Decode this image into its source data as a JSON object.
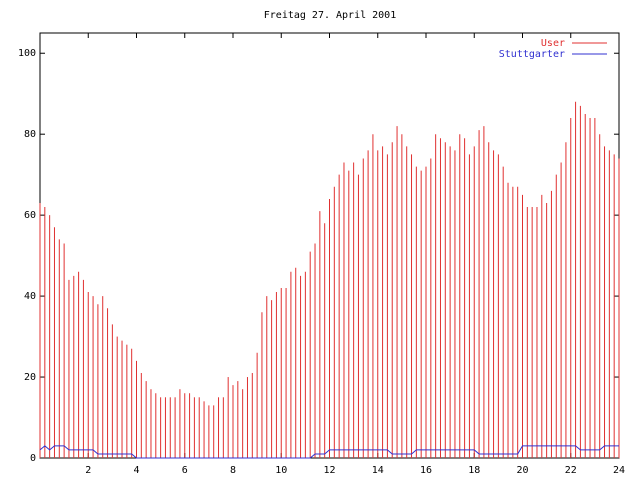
{
  "chart_data": {
    "type": "impulse_line",
    "title": "Freitag 27. April 2001",
    "x": [
      0,
      0.2,
      0.4,
      0.6,
      0.8,
      1,
      1.2,
      1.4,
      1.6,
      1.8,
      2,
      2.2,
      2.4,
      2.6,
      2.8,
      3,
      3.2,
      3.4,
      3.6,
      3.8,
      4,
      4.2,
      4.4,
      4.6,
      4.8,
      5,
      5.2,
      5.4,
      5.6,
      5.8,
      6,
      6.2,
      6.4,
      6.6,
      6.8,
      7,
      7.2,
      7.4,
      7.6,
      7.8,
      8,
      8.2,
      8.4,
      8.6,
      8.8,
      9,
      9.2,
      9.4,
      9.6,
      9.8,
      10,
      10.2,
      10.4,
      10.6,
      10.8,
      11,
      11.2,
      11.4,
      11.6,
      11.8,
      12,
      12.2,
      12.4,
      12.6,
      12.8,
      13,
      13.2,
      13.4,
      13.6,
      13.8,
      14,
      14.2,
      14.4,
      14.6,
      14.8,
      15,
      15.2,
      15.4,
      15.6,
      15.8,
      16,
      16.2,
      16.4,
      16.6,
      16.8,
      17,
      17.2,
      17.4,
      17.6,
      17.8,
      18,
      18.2,
      18.4,
      18.6,
      18.8,
      19,
      19.2,
      19.4,
      19.6,
      19.8,
      20,
      20.2,
      20.4,
      20.6,
      20.8,
      21,
      21.2,
      21.4,
      21.6,
      21.8,
      22,
      22.2,
      22.4,
      22.6,
      22.8,
      23,
      23.2,
      23.4,
      23.6,
      23.8,
      24
    ],
    "series": [
      {
        "name": "User",
        "color": "#e03030",
        "style": "impulses",
        "values": [
          63,
          62,
          60,
          57,
          54,
          53,
          44,
          45,
          46,
          44,
          41,
          40,
          38,
          40,
          37,
          33,
          30,
          29,
          28,
          27,
          24,
          21,
          19,
          17,
          16,
          15,
          15,
          15,
          15,
          17,
          16,
          16,
          15,
          15,
          14,
          13,
          13,
          15,
          15,
          20,
          18,
          19,
          17,
          20,
          21,
          26,
          36,
          40,
          39,
          41,
          42,
          42,
          46,
          47,
          45,
          46,
          51,
          53,
          61,
          58,
          64,
          67,
          70,
          73,
          71,
          73,
          70,
          74,
          76,
          80,
          76,
          77,
          75,
          78,
          82,
          80,
          77,
          75,
          72,
          71,
          72,
          74,
          80,
          79,
          78,
          77,
          76,
          80,
          79,
          75,
          77,
          81,
          82,
          78,
          76,
          75,
          72,
          68,
          67,
          67,
          65,
          62,
          62,
          62,
          65,
          63,
          66,
          70,
          73,
          78,
          84,
          88,
          87,
          85,
          84,
          84,
          80,
          77,
          76,
          75,
          74
        ]
      },
      {
        "name": "Stuttgarter",
        "color": "#3030d0",
        "style": "line",
        "values": [
          2,
          3,
          2,
          3,
          3,
          3,
          2,
          2,
          2,
          2,
          2,
          2,
          1,
          1,
          1,
          1,
          1,
          1,
          1,
          1,
          0,
          0,
          0,
          0,
          0,
          0,
          0,
          0,
          0,
          0,
          0,
          0,
          0,
          0,
          0,
          0,
          0,
          0,
          0,
          0,
          0,
          0,
          0,
          0,
          0,
          0,
          0,
          0,
          0,
          0,
          0,
          0,
          0,
          0,
          0,
          0,
          0,
          1,
          1,
          1,
          2,
          2,
          2,
          2,
          2,
          2,
          2,
          2,
          2,
          2,
          2,
          2,
          2,
          1,
          1,
          1,
          1,
          1,
          2,
          2,
          2,
          2,
          2,
          2,
          2,
          2,
          2,
          2,
          2,
          2,
          2,
          1,
          1,
          1,
          1,
          1,
          1,
          1,
          1,
          1,
          3,
          3,
          3,
          3,
          3,
          3,
          3,
          3,
          3,
          3,
          3,
          3,
          2,
          2,
          2,
          2,
          2,
          3,
          3,
          3,
          3
        ]
      }
    ],
    "xlim": [
      0,
      24
    ],
    "xticks": [
      2,
      4,
      6,
      8,
      10,
      12,
      14,
      16,
      18,
      20,
      22,
      24
    ],
    "ylim": [
      0,
      105
    ],
    "yticks": [
      0,
      20,
      40,
      60,
      80,
      100
    ],
    "legend": "top-right"
  }
}
